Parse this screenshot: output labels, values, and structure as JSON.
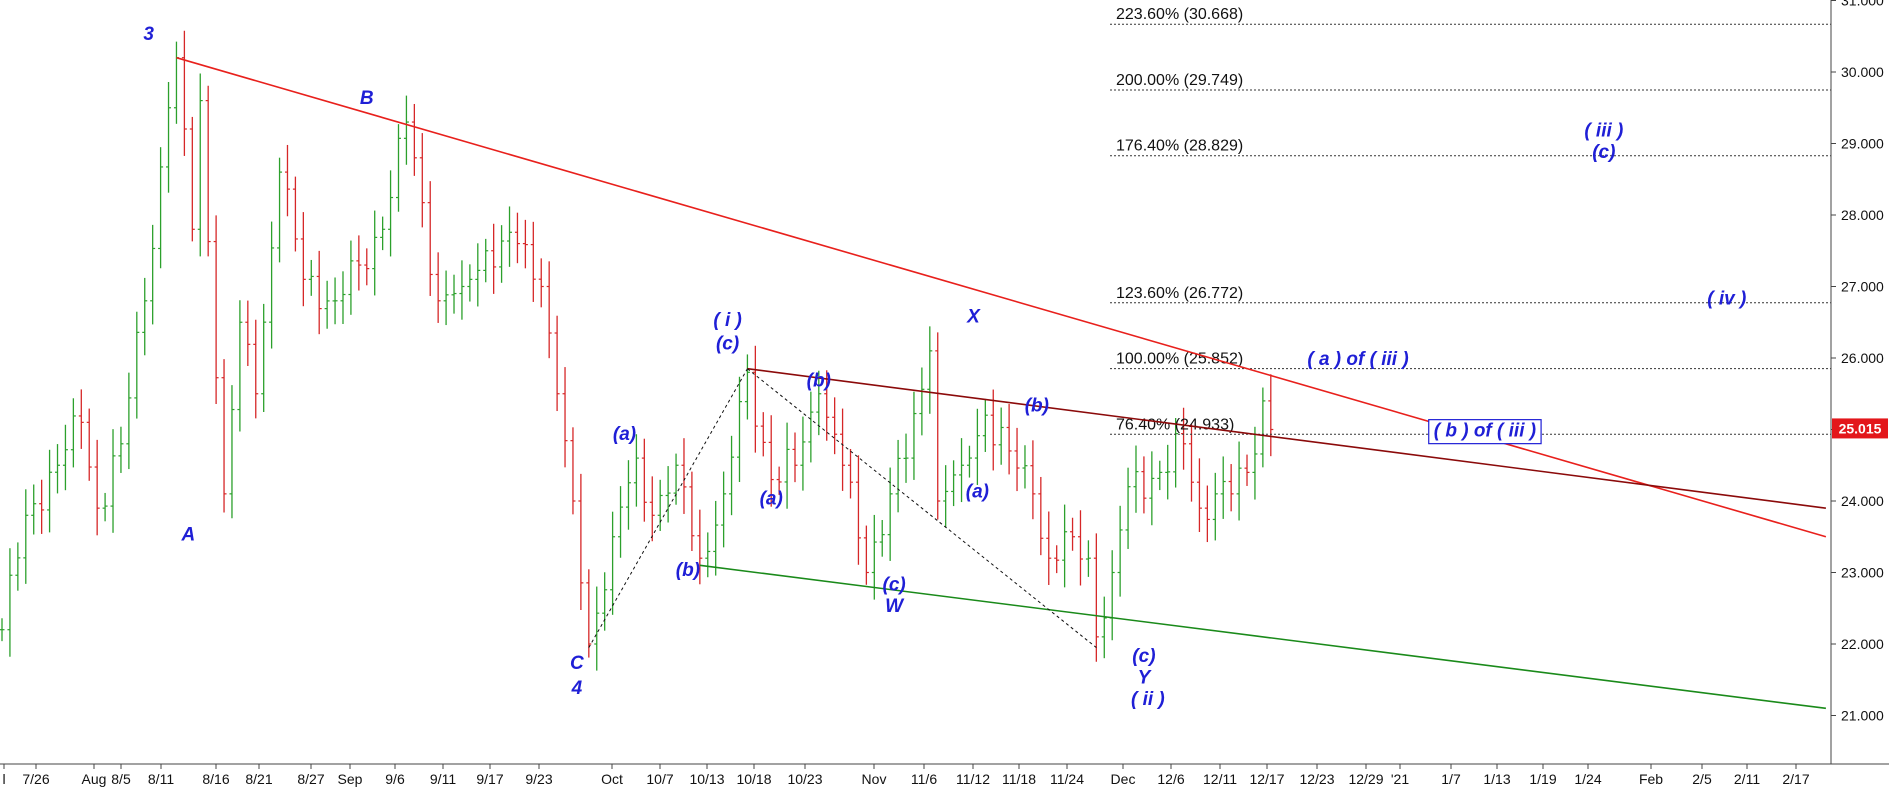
{
  "chart_data": {
    "type": "ohlc",
    "title": "",
    "xlabel": "",
    "ylabel": "",
    "ylim": [
      20.6,
      31.1
    ],
    "current_price": "25.015",
    "y_ticks": [
      "31.000",
      "30.000",
      "29.000",
      "28.000",
      "27.000",
      "26.000",
      "25.000",
      "24.000",
      "23.000",
      "22.000",
      "21.000"
    ],
    "x_ticks": [
      "l",
      "7/26",
      "Aug",
      "8/5",
      "8/11",
      "8/16",
      "8/21",
      "8/27",
      "Sep",
      "9/6",
      "9/11",
      "9/17",
      "9/23",
      "Oct",
      "10/7",
      "10/13",
      "10/18",
      "10/23",
      "Nov",
      "11/6",
      "11/12",
      "11/18",
      "11/24",
      "Dec",
      "12/6",
      "12/11",
      "12/17",
      "12/23",
      "12/29",
      "'21",
      "1/7",
      "1/13",
      "1/19",
      "1/24",
      "Feb",
      "2/5",
      "2/11",
      "2/17"
    ],
    "price_pivots": [
      {
        "d": 0,
        "p": 22.2
      },
      {
        "d": 3,
        "p": 23.8
      },
      {
        "d": 7,
        "p": 24.5
      },
      {
        "d": 10,
        "p": 25.1
      },
      {
        "d": 12,
        "p": 23.9
      },
      {
        "d": 15,
        "p": 24.8
      },
      {
        "d": 18,
        "p": 26.8
      },
      {
        "d": 21,
        "p": 29.5
      },
      {
        "d": 22,
        "p": 30.2
      },
      {
        "d": 24,
        "p": 27.8
      },
      {
        "d": 25,
        "p": 29.6
      },
      {
        "d": 28,
        "p": 24.1
      },
      {
        "d": 30,
        "p": 26.5
      },
      {
        "d": 32,
        "p": 25.5
      },
      {
        "d": 35,
        "p": 28.6
      },
      {
        "d": 38,
        "p": 27.1
      },
      {
        "d": 42,
        "p": 26.8
      },
      {
        "d": 45,
        "p": 27.3
      },
      {
        "d": 48,
        "p": 27.8
      },
      {
        "d": 51,
        "p": 29.3
      },
      {
        "d": 52,
        "p": 28.8
      },
      {
        "d": 55,
        "p": 26.8
      },
      {
        "d": 58,
        "p": 27.0
      },
      {
        "d": 61,
        "p": 27.5
      },
      {
        "d": 65,
        "p": 27.6
      },
      {
        "d": 68,
        "p": 27.0
      },
      {
        "d": 70,
        "p": 25.5
      },
      {
        "d": 72,
        "p": 24.0
      },
      {
        "d": 74,
        "p": 22.0
      },
      {
        "d": 77,
        "p": 23.5
      },
      {
        "d": 80,
        "p": 24.6
      },
      {
        "d": 82,
        "p": 23.8
      },
      {
        "d": 85,
        "p": 24.5
      },
      {
        "d": 88,
        "p": 23.2
      },
      {
        "d": 91,
        "p": 24.1
      },
      {
        "d": 94,
        "p": 25.8
      },
      {
        "d": 97,
        "p": 24.3
      },
      {
        "d": 100,
        "p": 24.5
      },
      {
        "d": 103,
        "p": 25.5
      },
      {
        "d": 106,
        "p": 24.5
      },
      {
        "d": 109,
        "p": 23.0
      },
      {
        "d": 112,
        "p": 24.1
      },
      {
        "d": 114,
        "p": 24.6
      },
      {
        "d": 117,
        "p": 26.1
      },
      {
        "d": 118,
        "p": 24.0
      },
      {
        "d": 121,
        "p": 24.5
      },
      {
        "d": 124,
        "p": 25.2
      },
      {
        "d": 127,
        "p": 24.7
      },
      {
        "d": 130,
        "p": 24.1
      },
      {
        "d": 132,
        "p": 23.2
      },
      {
        "d": 135,
        "p": 23.5
      },
      {
        "d": 137,
        "p": 23.2
      },
      {
        "d": 138,
        "p": 22.1
      },
      {
        "d": 140,
        "p": 23.0
      },
      {
        "d": 142,
        "p": 24.2
      },
      {
        "d": 146,
        "p": 24.4
      },
      {
        "d": 149,
        "p": 24.8
      },
      {
        "d": 151,
        "p": 23.9
      },
      {
        "d": 153,
        "p": 24.1
      },
      {
        "d": 155,
        "p": 24.1
      },
      {
        "d": 157,
        "p": 24.4
      },
      {
        "d": 159,
        "p": 25.4
      },
      {
        "d": 160,
        "p": 25.0
      }
    ],
    "fib_levels": [
      {
        "label": "223.60% (30.668)",
        "value": 30.668
      },
      {
        "label": "200.00% (29.749)",
        "value": 29.749
      },
      {
        "label": "176.40% (28.829)",
        "value": 28.829
      },
      {
        "label": "123.60% (26.772)",
        "value": 26.772
      },
      {
        "label": "100.00% (25.852)",
        "value": 25.852
      },
      {
        "label": "76.40% (24.933)",
        "value": 24.933
      }
    ],
    "trendlines": [
      {
        "color": "#e8201c",
        "from": {
          "d": 22,
          "p": 30.2
        },
        "to": {
          "d": 230,
          "p": 23.5
        },
        "style": "solid"
      },
      {
        "color": "#8b0a0a",
        "from": {
          "d": 94,
          "p": 25.85
        },
        "to": {
          "d": 230,
          "p": 23.9
        },
        "style": "solid"
      },
      {
        "color": "#1a8a1a",
        "from": {
          "d": 88,
          "p": 23.1
        },
        "to": {
          "d": 230,
          "p": 21.1
        },
        "style": "solid"
      },
      {
        "color": "#111111",
        "from": {
          "d": 74,
          "p": 21.95
        },
        "to": {
          "d": 94,
          "p": 25.85
        },
        "style": "dashed"
      },
      {
        "color": "#111111",
        "from": {
          "d": 94,
          "p": 25.85
        },
        "to": {
          "d": 138,
          "p": 21.95
        },
        "style": "dashed"
      }
    ],
    "wave_labels": [
      {
        "text": "3",
        "d": 18.5,
        "p": 30.45
      },
      {
        "text": "B",
        "d": 46,
        "p": 29.55
      },
      {
        "text": "A",
        "d": 23.5,
        "p": 23.45
      },
      {
        "text": "C",
        "d": 72.5,
        "p": 21.65
      },
      {
        "text": "4",
        "d": 72.5,
        "p": 21.3
      },
      {
        "text": "(a)",
        "d": 78.5,
        "p": 24.85
      },
      {
        "text": "( i )",
        "d": 91.5,
        "p": 26.45
      },
      {
        "text": "(c)",
        "d": 91.5,
        "p": 26.12
      },
      {
        "text": "(b)",
        "d": 103,
        "p": 25.6
      },
      {
        "text": "(a)",
        "d": 97,
        "p": 23.95
      },
      {
        "text": "(b)",
        "d": 86.5,
        "p": 22.95
      },
      {
        "text": "(c)",
        "d": 112.5,
        "p": 22.75
      },
      {
        "text": "W",
        "d": 112.5,
        "p": 22.45
      },
      {
        "text": "X",
        "d": 122.5,
        "p": 26.5
      },
      {
        "text": "(a)",
        "d": 123,
        "p": 24.05
      },
      {
        "text": "(b)",
        "d": 130.5,
        "p": 25.25
      },
      {
        "text": "(c)",
        "d": 144,
        "p": 21.75
      },
      {
        "text": "Y",
        "d": 144,
        "p": 21.45
      },
      {
        "text": "( ii )",
        "d": 144.5,
        "p": 21.15
      },
      {
        "text": "( a ) of ( iii )",
        "d": 171,
        "p": 25.9
      },
      {
        "text": "( b ) of ( iii )",
        "d": 187,
        "p": 24.9
      },
      {
        "text": "( iii )",
        "d": 202,
        "p": 29.1
      },
      {
        "text": "(c)",
        "d": 202,
        "p": 28.8
      },
      {
        "text": "( iv )",
        "d": 217.5,
        "p": 26.75
      }
    ]
  },
  "colors": {
    "up_bar": "#2ca02c",
    "down_bar": "#d62728",
    "wave_label": "#1f1fd6",
    "price_tag_bg": "#e3171b",
    "grid_dots": "#333333"
  }
}
